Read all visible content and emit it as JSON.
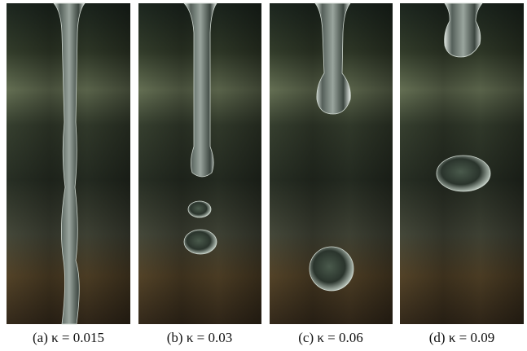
{
  "figure": {
    "panels": [
      {
        "caption": "(a) κ = 0.015"
      },
      {
        "caption": "(b) κ = 0.03"
      },
      {
        "caption": "(c) κ = 0.06"
      },
      {
        "caption": "(d) κ = 0.09"
      }
    ]
  }
}
